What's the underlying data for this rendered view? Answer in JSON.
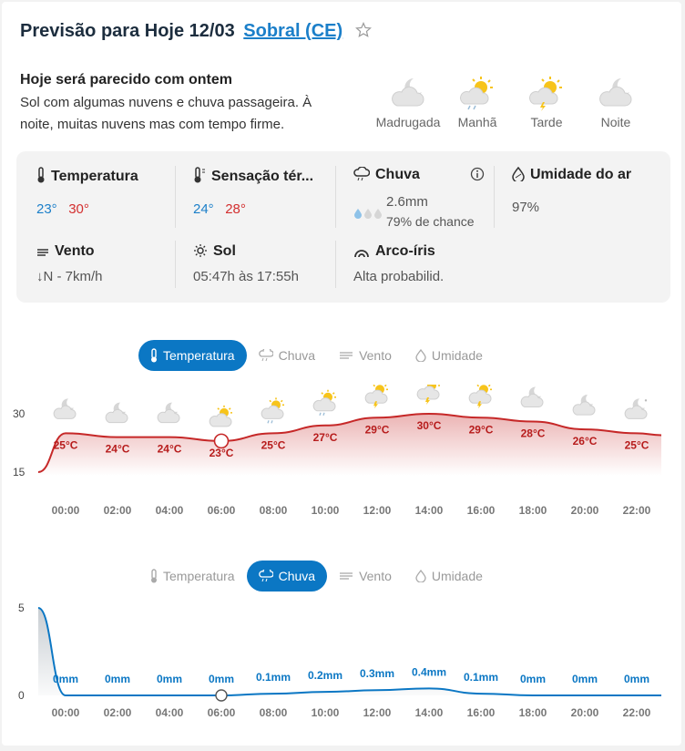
{
  "header": {
    "title": "Previsão para Hoje 12/03",
    "city": "Sobral (CE)"
  },
  "summary": {
    "headline": "Hoje será parecido com ontem",
    "text": "Sol com algumas nuvens e chuva passageira. À noite, muitas nuvens mas com tempo firme."
  },
  "periods": [
    {
      "label": "Madrugada",
      "icon": "moon-cloud-icon"
    },
    {
      "label": "Manhã",
      "icon": "sun-cloud-rain-icon"
    },
    {
      "label": "Tarde",
      "icon": "sun-cloud-storm-icon"
    },
    {
      "label": "Noite",
      "icon": "moon-cloud-icon"
    }
  ],
  "details": {
    "temperature": {
      "label": "Temperatura",
      "min": "23°",
      "max": "30°"
    },
    "feels_like": {
      "label": "Sensação tér...",
      "min": "24°",
      "max": "28°"
    },
    "rain": {
      "label": "Chuva",
      "amount": "2.6mm",
      "chance": "79% de chance"
    },
    "humidity": {
      "label": "Umidade do ar",
      "value": "97%"
    },
    "wind": {
      "label": "Vento",
      "value": "↓N - 7km/h"
    },
    "sun": {
      "label": "Sol",
      "value": "05:47h às 17:55h"
    },
    "rainbow": {
      "label": "Arco-íris",
      "value": "Alta probabilid."
    }
  },
  "tabs": {
    "temperature": "Temperatura",
    "rain": "Chuva",
    "wind": "Vento",
    "humidity": "Umidade"
  },
  "chart_data": [
    {
      "type": "line",
      "title": "Temperatura",
      "ylim": [
        15,
        30
      ],
      "yticks": [
        "30",
        "15"
      ],
      "x": [
        "00:00",
        "02:00",
        "04:00",
        "06:00",
        "08:00",
        "10:00",
        "12:00",
        "14:00",
        "16:00",
        "18:00",
        "20:00",
        "22:00"
      ],
      "values": [
        25,
        24,
        24,
        23,
        25,
        27,
        29,
        30,
        29,
        28,
        26,
        25
      ],
      "labels": [
        "25°C",
        "24°C",
        "24°C",
        "23°C",
        "25°C",
        "27°C",
        "29°C",
        "30°C",
        "29°C",
        "28°C",
        "26°C",
        "25°C"
      ],
      "icons": [
        "moon-cloud-icon",
        "moon-cloud-icon",
        "moon-cloud-icon",
        "sun-cloud-icon",
        "sun-cloud-rain-icon",
        "sun-cloud-rain-icon",
        "sun-cloud-storm-icon",
        "sun-cloud-storm-icon",
        "sun-cloud-storm-icon",
        "moon-cloud-icon",
        "moon-cloud-icon",
        "moon-stars-cloud-icon"
      ],
      "color": "#c62828",
      "selected": "06:00"
    },
    {
      "type": "area",
      "title": "Chuva",
      "ylim": [
        0,
        5
      ],
      "yticks": [
        "5",
        "0"
      ],
      "x": [
        "00:00",
        "02:00",
        "04:00",
        "06:00",
        "08:00",
        "10:00",
        "12:00",
        "14:00",
        "16:00",
        "18:00",
        "20:00",
        "22:00"
      ],
      "values": [
        0,
        0,
        0,
        0,
        0.1,
        0.2,
        0.3,
        0.4,
        0.1,
        0,
        0,
        0
      ],
      "labels": [
        "0mm",
        "0mm",
        "0mm",
        "0mm",
        "0.1mm",
        "0.2mm",
        "0.3mm",
        "0.4mm",
        "0.1mm",
        "0mm",
        "0mm",
        "0mm"
      ],
      "color": "#0b77c4",
      "selected": "06:00"
    }
  ]
}
